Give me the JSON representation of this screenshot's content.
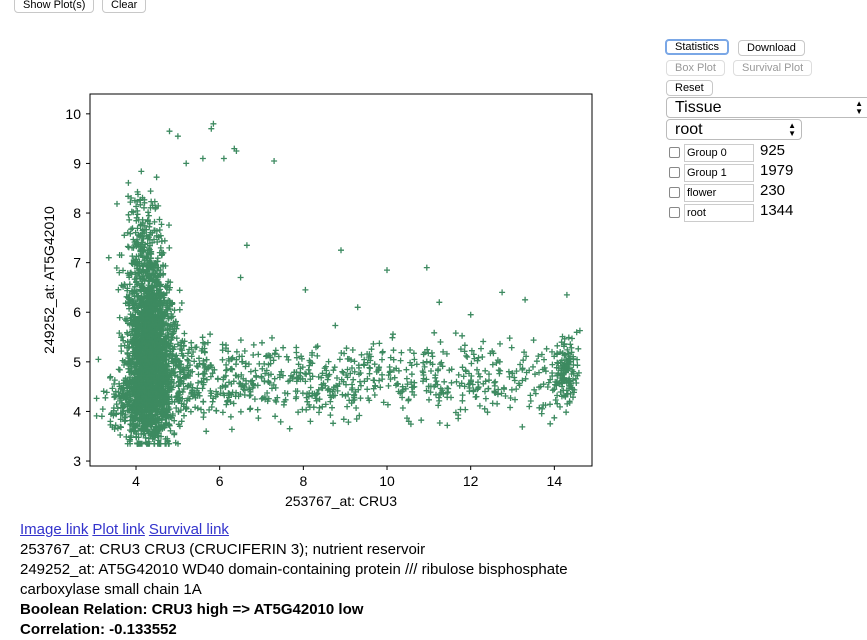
{
  "top_buttons": {
    "show_plots": "Show Plot(s)",
    "clear": "Clear"
  },
  "panel": {
    "statistics": "Statistics",
    "download": "Download",
    "box_plot": "Box Plot",
    "survival_plot": "Survival Plot",
    "reset": "Reset",
    "select1": "Tissue",
    "select2": "root",
    "groups": [
      {
        "name": "Group 0",
        "count": "925"
      },
      {
        "name": "Group 1",
        "count": "1979"
      },
      {
        "name": "flower",
        "count": "230"
      },
      {
        "name": "root",
        "count": "1344"
      }
    ]
  },
  "info": {
    "link_image": "Image link",
    "link_plot": "Plot link",
    "link_survival": "Survival link",
    "line1": "253767_at: CRU3 CRU3 (CRUCIFERIN 3); nutrient reservoir",
    "line2": "249252_at: AT5G42010 WD40 domain-containing protein /// ribulose bisphosphate",
    "line3": "carboxylase small chain 1A",
    "boolean": "Boolean Relation: CRU3 high => AT5G42010 low",
    "correlation": "Correlation: -0.133552"
  },
  "chart_data": {
    "type": "scatter",
    "marker": "+",
    "color": "#3d8a60",
    "xlabel": "253767_at:  CRU3",
    "ylabel": "249252_at:  AT5G42010",
    "xlim": [
      2.9,
      14.9
    ],
    "ylim": [
      2.9,
      10.4
    ],
    "xticks": [
      4,
      6,
      8,
      10,
      12,
      14
    ],
    "yticks": [
      3,
      4,
      5,
      6,
      7,
      8,
      9,
      10
    ],
    "grid": false,
    "clusters": [
      {
        "x_center": 4.35,
        "x_spread": 0.28,
        "y_center": 5.1,
        "y_spread": 0.85,
        "count": 2200
      },
      {
        "x_center": 4.2,
        "x_spread": 0.25,
        "y_center": 7.2,
        "y_spread": 0.6,
        "count": 250
      },
      {
        "x_center": 4.0,
        "x_spread": 0.35,
        "y_center": 4.2,
        "y_spread": 0.3,
        "count": 250
      },
      {
        "x_center": 14.3,
        "x_spread": 0.15,
        "y_center": 4.85,
        "y_spread": 0.35,
        "count": 120
      }
    ],
    "tail": {
      "x_min": 5.0,
      "x_max": 14.2,
      "y_center": 4.65,
      "y_spread": 0.4,
      "count": 800
    },
    "outliers": [
      [
        4.8,
        9.65
      ],
      [
        5.0,
        9.55
      ],
      [
        5.85,
        9.8
      ],
      [
        5.8,
        9.7
      ],
      [
        5.6,
        9.1
      ],
      [
        5.2,
        9.0
      ],
      [
        6.35,
        9.3
      ],
      [
        6.4,
        9.25
      ],
      [
        6.1,
        9.1
      ],
      [
        7.3,
        9.05
      ],
      [
        8.9,
        7.25
      ],
      [
        10.0,
        6.85
      ],
      [
        10.95,
        6.9
      ],
      [
        6.65,
        7.35
      ],
      [
        6.5,
        6.7
      ],
      [
        8.05,
        6.45
      ],
      [
        9.3,
        6.1
      ],
      [
        11.25,
        6.2
      ],
      [
        12.75,
        6.4
      ],
      [
        13.3,
        6.25
      ],
      [
        12.0,
        5.95
      ],
      [
        14.3,
        6.35
      ],
      [
        3.1,
        5.05
      ],
      [
        3.35,
        7.1
      ],
      [
        3.6,
        6.8
      ],
      [
        13.9,
        3.75
      ],
      [
        4.4,
        3.5
      ],
      [
        5.05,
        3.7
      ],
      [
        13.4,
        4.1
      ]
    ]
  }
}
